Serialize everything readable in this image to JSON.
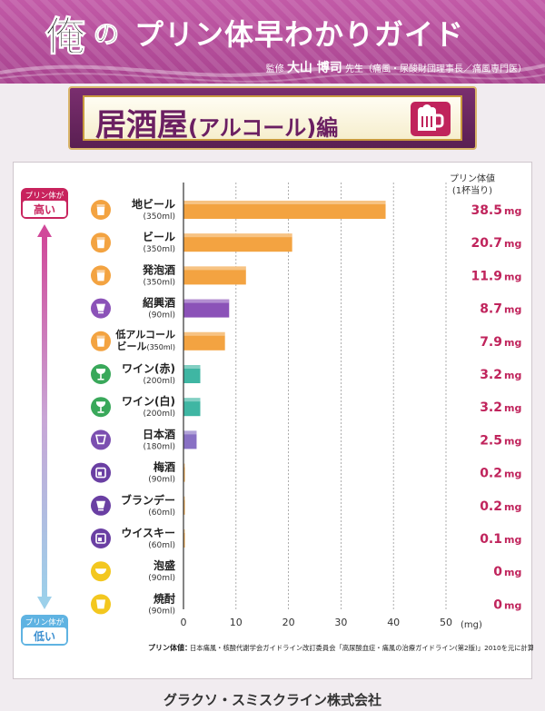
{
  "header": {
    "brand_char": "俺",
    "brand_no": "の",
    "title": "プリン体早わかりガイド",
    "supervisor_prefix": "監修",
    "supervisor_name": "大山 博司",
    "supervisor_suffix": "先生（痛風・尿酸財団理事長／痛風専門医）"
  },
  "section": {
    "title": "居酒屋",
    "paren_part": "(アルコール)",
    "suffix": "編"
  },
  "scale": {
    "high_label": "プリン体が",
    "high_value": "高い",
    "low_label": "プリン体が",
    "low_value": "低い"
  },
  "column_header": {
    "line1": "プリン体値",
    "line2": "(1杯当り)"
  },
  "colors": {
    "beer": "#f3a341",
    "shaoxing": "#8b52b8",
    "wine": "#3fb6a3",
    "sake": "#8870c4",
    "shochu": "#f3c71f",
    "value_text": "#c0245c"
  },
  "chart_data": {
    "type": "bar",
    "orientation": "horizontal",
    "xlim": [
      0,
      50
    ],
    "xticks": [
      0,
      10,
      20,
      30,
      40,
      50
    ],
    "xunit": "(mg)",
    "grid": true,
    "categories": [
      {
        "name": "地ビール",
        "amount": "(350ml)",
        "value": 38.5,
        "value_label": "38.5",
        "unit": "mg",
        "icon": "beer-mug-icon",
        "icon_color": "#f3a341"
      },
      {
        "name": "ビール",
        "amount": "(350ml)",
        "value": 20.7,
        "value_label": "20.7",
        "unit": "mg",
        "icon": "beer-glass-icon",
        "icon_color": "#f3a341"
      },
      {
        "name": "発泡酒",
        "amount": "(350ml)",
        "value": 11.9,
        "value_label": "11.9",
        "unit": "mg",
        "icon": "beer-glass-icon",
        "icon_color": "#f3a341"
      },
      {
        "name": "紹興酒",
        "amount": "(90ml)",
        "value": 8.7,
        "value_label": "8.7",
        "unit": "mg",
        "icon": "shaoxing-glass-icon",
        "icon_color": "#8b52b8"
      },
      {
        "name": "低アルコール",
        "name2": "ビール",
        "amount": "(350ml)",
        "value": 7.9,
        "value_label": "7.9",
        "unit": "mg",
        "icon": "beer-glass-icon",
        "icon_color": "#f3a341"
      },
      {
        "name": "ワイン(赤)",
        "amount": "(200ml)",
        "value": 3.2,
        "value_label": "3.2",
        "unit": "mg",
        "icon": "wine-glass-icon",
        "icon_color": "#39a85a"
      },
      {
        "name": "ワイン(白)",
        "amount": "(200ml)",
        "value": 3.2,
        "value_label": "3.2",
        "unit": "mg",
        "icon": "wine-glass-icon",
        "icon_color": "#39a85a"
      },
      {
        "name": "日本酒",
        "amount": "(180ml)",
        "value": 2.5,
        "value_label": "2.5",
        "unit": "mg",
        "icon": "sake-box-icon",
        "icon_color": "#7b4fb0"
      },
      {
        "name": "梅酒",
        "amount": "(90ml)",
        "value": 0.2,
        "value_label": "0.2",
        "unit": "mg",
        "icon": "rock-glass-icon",
        "icon_color": "#6a3fa3"
      },
      {
        "name": "ブランデー",
        "amount": "(60ml)",
        "value": 0.2,
        "value_label": "0.2",
        "unit": "mg",
        "icon": "brandy-glass-icon",
        "icon_color": "#6a3fa3"
      },
      {
        "name": "ウイスキー",
        "amount": "(60ml)",
        "value": 0.1,
        "value_label": "0.1",
        "unit": "mg",
        "icon": "whisky-glass-icon",
        "icon_color": "#6a3fa3"
      },
      {
        "name": "泡盛",
        "amount": "(90ml)",
        "value": 0,
        "value_label": "0",
        "unit": "mg",
        "icon": "bowl-icon",
        "icon_color": "#f3c71f"
      },
      {
        "name": "焼酎",
        "amount": "(90ml)",
        "value": 0,
        "value_label": "0",
        "unit": "mg",
        "icon": "cup-icon",
        "icon_color": "#f3c71f"
      }
    ],
    "note_label": "プリン体値：",
    "note": "日本痛風・核酸代謝学会ガイドライン改訂委員会「高尿酸血症・痛風の治療ガイドライン(第2版)」2010を元に計算"
  },
  "footer": "グラクソ・スミスクライン株式会社"
}
